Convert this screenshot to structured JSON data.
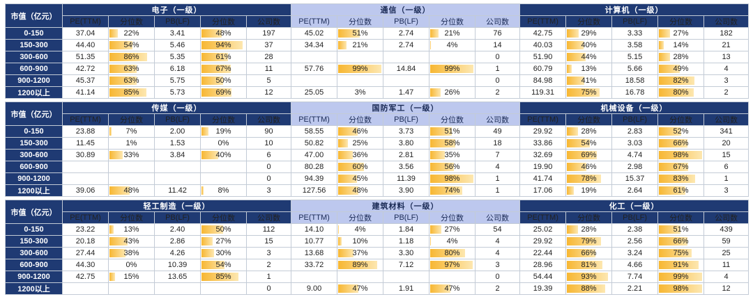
{
  "row_header_label": "市值（亿元）",
  "row_labels": [
    "0-150",
    "150-300",
    "300-600",
    "600-900",
    "900-1200",
    "1200以上"
  ],
  "sub_headers": [
    "PE(TTM)",
    "分位数",
    "PB(LF)",
    "分位数",
    "公司数"
  ],
  "colors": {
    "dark_header": "#1f3a73",
    "light_header": "#bdc8ee",
    "bar": "#f7b733"
  },
  "blocks": [
    {
      "industries": [
        {
          "name": "电子（一级）",
          "style": "dark",
          "rows": [
            [
              "37.04",
              "22%",
              "3.41",
              "48%",
              "197"
            ],
            [
              "44.40",
              "54%",
              "5.46",
              "94%",
              "37"
            ],
            [
              "51.35",
              "86%",
              "5.35",
              "61%",
              "28"
            ],
            [
              "42.72",
              "63%",
              "6.18",
              "67%",
              "11"
            ],
            [
              "45.37",
              "63%",
              "5.75",
              "50%",
              "5"
            ],
            [
              "41.14",
              "85%",
              "5.73",
              "69%",
              "12"
            ]
          ]
        },
        {
          "name": "通信（一级）",
          "style": "light",
          "rows": [
            [
              "45.02",
              "51%",
              "2.74",
              "21%",
              "76"
            ],
            [
              "34.34",
              "21%",
              "2.74",
              "4%",
              "14"
            ],
            [
              "",
              "",
              "",
              "",
              "0"
            ],
            [
              "57.76",
              "99%",
              "14.84",
              "99%",
              "1"
            ],
            [
              "",
              "",
              "",
              "",
              "0"
            ],
            [
              "25.05",
              "3%",
              "1.47",
              "26%",
              "2"
            ]
          ]
        },
        {
          "name": "计算机（一级）",
          "style": "dark",
          "rows": [
            [
              "42.75",
              "29%",
              "3.33",
              "27%",
              "182"
            ],
            [
              "40.03",
              "40%",
              "3.58",
              "14%",
              "21"
            ],
            [
              "51.90",
              "44%",
              "5.15",
              "28%",
              "13"
            ],
            [
              "60.79",
              "13%",
              "5.66",
              "49%",
              "4"
            ],
            [
              "84.98",
              "41%",
              "18.58",
              "82%",
              "3"
            ],
            [
              "119.31",
              "75%",
              "16.78",
              "80%",
              "2"
            ]
          ]
        }
      ]
    },
    {
      "industries": [
        {
          "name": "传媒（一级）",
          "style": "dark",
          "rows": [
            [
              "23.88",
              "7%",
              "2.00",
              "19%",
              "90"
            ],
            [
              "11.45",
              "1%",
              "1.53",
              "0%",
              "10"
            ],
            [
              "30.89",
              "33%",
              "3.84",
              "40%",
              "6"
            ],
            [
              "",
              "",
              "",
              "",
              "0"
            ],
            [
              "",
              "",
              "",
              "",
              "0"
            ],
            [
              "39.06",
              "48%",
              "11.42",
              "8%",
              "3"
            ]
          ]
        },
        {
          "name": "国防军工（一级）",
          "style": "light",
          "rows": [
            [
              "58.55",
              "46%",
              "3.73",
              "51%",
              "49"
            ],
            [
              "50.82",
              "25%",
              "3.80",
              "58%",
              "18"
            ],
            [
              "47.00",
              "36%",
              "2.81",
              "35%",
              "7"
            ],
            [
              "80.28",
              "60%",
              "3.56",
              "56%",
              "4"
            ],
            [
              "94.39",
              "45%",
              "11.39",
              "98%",
              "1"
            ],
            [
              "127.56",
              "48%",
              "3.90",
              "74%",
              "1"
            ]
          ]
        },
        {
          "name": "机械设备（一级）",
          "style": "dark",
          "rows": [
            [
              "29.92",
              "28%",
              "2.83",
              "52%",
              "341"
            ],
            [
              "33.86",
              "54%",
              "3.03",
              "66%",
              "20"
            ],
            [
              "32.69",
              "69%",
              "4.74",
              "98%",
              "15"
            ],
            [
              "19.90",
              "46%",
              "2.98",
              "67%",
              "6"
            ],
            [
              "41.74",
              "78%",
              "15.37",
              "83%",
              "1"
            ],
            [
              "17.06",
              "19%",
              "2.64",
              "61%",
              "3"
            ]
          ]
        }
      ]
    },
    {
      "industries": [
        {
          "name": "轻工制造（一级）",
          "style": "dark",
          "rows": [
            [
              "23.22",
              "13%",
              "2.40",
              "50%",
              "112"
            ],
            [
              "20.18",
              "43%",
              "2.86",
              "27%",
              "15"
            ],
            [
              "27.44",
              "38%",
              "4.26",
              "30%",
              "3"
            ],
            [
              "44.30",
              "0%",
              "10.39",
              "54%",
              "2"
            ],
            [
              "42.75",
              "15%",
              "13.65",
              "85%",
              "1"
            ],
            [
              "",
              "",
              "",
              "",
              "0"
            ]
          ]
        },
        {
          "name": "建筑材料（一级）",
          "style": "light",
          "rows": [
            [
              "14.10",
              "4%",
              "1.84",
              "27%",
              "54"
            ],
            [
              "10.77",
              "10%",
              "1.18",
              "4%",
              "4"
            ],
            [
              "13.68",
              "37%",
              "3.30",
              "80%",
              "4"
            ],
            [
              "33.72",
              "89%",
              "7.12",
              "97%",
              "3"
            ],
            [
              "",
              "",
              "",
              "",
              "0"
            ],
            [
              "9.00",
              "47%",
              "1.91",
              "47%",
              "2"
            ]
          ]
        },
        {
          "name": "化工（一级）",
          "style": "dark",
          "rows": [
            [
              "25.02",
              "28%",
              "2.38",
              "51%",
              "439"
            ],
            [
              "29.92",
              "79%",
              "2.56",
              "66%",
              "59"
            ],
            [
              "22.44",
              "66%",
              "3.24",
              "75%",
              "25"
            ],
            [
              "28.96",
              "81%",
              "4.66",
              "91%",
              "11"
            ],
            [
              "54.44",
              "93%",
              "7.74",
              "99%",
              "4"
            ],
            [
              "19.39",
              "88%",
              "2.21",
              "98%",
              "12"
            ]
          ]
        }
      ]
    }
  ]
}
